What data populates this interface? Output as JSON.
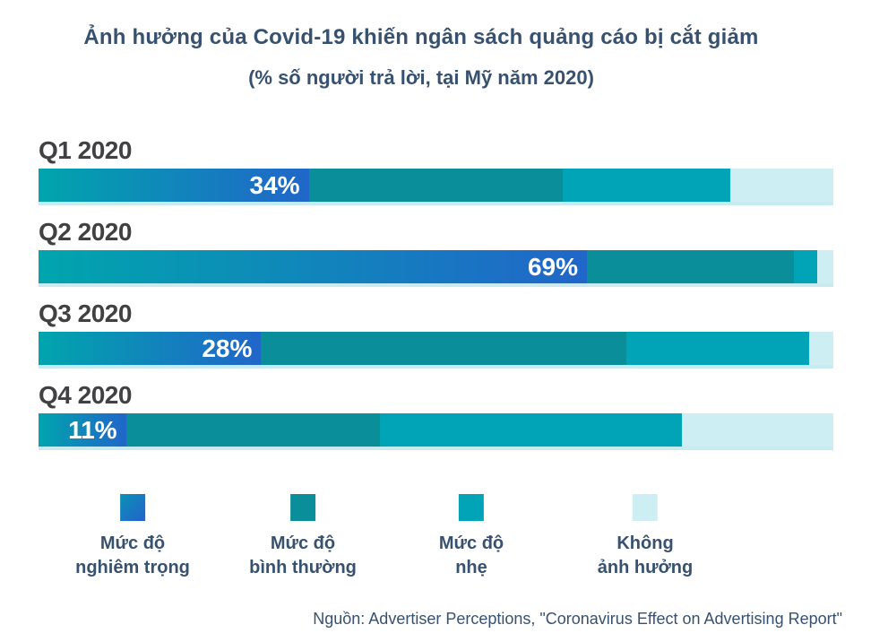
{
  "title": "Ảnh hưởng của Covid-19 khiến ngân sách quảng cáo bị cắt giảm",
  "subtitle": "(% số người trả lời, tại Mỹ năm 2020)",
  "source": "Nguồn: Advertiser Perceptions, \"Coronavirus Effect on Advertising Report\"",
  "colors": {
    "severe_start": "#00a5ad",
    "severe_end": "#2166c9",
    "normal": "#0a8e9a",
    "mild": "#00a4b6",
    "none": "#cdeef2",
    "heading": "#37516f",
    "row_label": "#414042"
  },
  "legend": {
    "items": [
      {
        "key": "severe",
        "line1": "Mức độ",
        "line2": "nghiêm trọng"
      },
      {
        "key": "normal",
        "line1": "Mức độ",
        "line2": "bình thường"
      },
      {
        "key": "mild",
        "line1": "Mức độ",
        "line2": "nhẹ"
      },
      {
        "key": "none",
        "line1": "Không",
        "line2": "ảnh hưởng"
      }
    ]
  },
  "chart_data": {
    "type": "bar",
    "orientation": "horizontal-stacked",
    "unit": "percent",
    "xlim": [
      0,
      100
    ],
    "categories": [
      "Q1 2020",
      "Q2 2020",
      "Q3 2020",
      "Q4 2020"
    ],
    "series": [
      {
        "key": "severe",
        "name": "Mức độ nghiêm trọng",
        "values": [
          34,
          69,
          28,
          11
        ]
      },
      {
        "key": "normal",
        "name": "Mức độ bình thường",
        "values": [
          32,
          26,
          46,
          32
        ]
      },
      {
        "key": "mild",
        "name": "Mức độ nhẹ",
        "values": [
          21,
          3,
          23,
          38
        ]
      },
      {
        "key": "none",
        "name": "Không ảnh hưởng",
        "values": [
          13,
          2,
          3,
          19
        ]
      }
    ],
    "bar_labels": [
      "34%",
      "69%",
      "28%",
      "11%"
    ],
    "notes": "Only the first (severe) segment of each bar carries a printed data label; other segment values estimated from pixel widths."
  }
}
